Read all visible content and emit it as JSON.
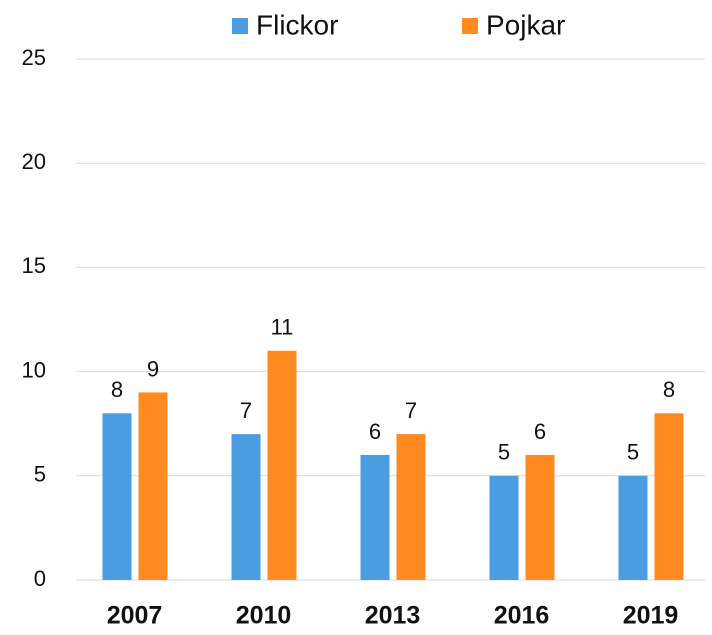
{
  "chart_data": {
    "type": "bar",
    "categories": [
      "2007",
      "2010",
      "2013",
      "2016",
      "2019"
    ],
    "series": [
      {
        "name": "Flickor",
        "color": "#4a9de0",
        "values": [
          8,
          7,
          6,
          5,
          5
        ]
      },
      {
        "name": "Pojkar",
        "color": "#ff8a1f",
        "values": [
          9,
          11,
          7,
          6,
          8
        ]
      }
    ],
    "ylim": [
      0,
      25
    ],
    "yticks": [
      0,
      5,
      10,
      15,
      20,
      25
    ],
    "grid": true,
    "legend": "top"
  }
}
